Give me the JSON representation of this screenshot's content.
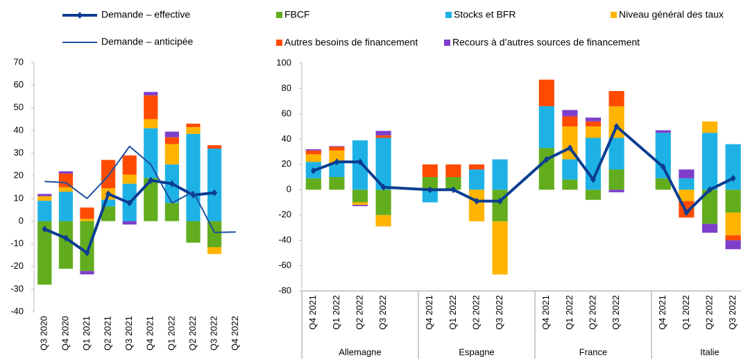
{
  "chart_data": [
    {
      "type": "bar",
      "categories": [
        "Q3 2020",
        "Q4 2020",
        "Q1 2021",
        "Q2 2021",
        "Q3 2021",
        "Q4 2021",
        "Q1 2022",
        "Q2 2022",
        "Q3 2022",
        "Q4 2022"
      ],
      "ylim": [
        -40,
        70
      ],
      "yticks": [
        -40,
        -30,
        -20,
        -10,
        0,
        10,
        20,
        30,
        40,
        50,
        60,
        70
      ],
      "series": [
        {
          "name": "Demande – effective",
          "type": "line",
          "marker": "diamond",
          "color": "#0b3d91",
          "values": [
            -3.5,
            -7.5,
            -14,
            12,
            8,
            18,
            16.5,
            11.5,
            12.5,
            null
          ]
        },
        {
          "name": "Demande – anticipée",
          "type": "line",
          "color": "#1c4f9c",
          "values": [
            17.5,
            17,
            10,
            20,
            33,
            25,
            8,
            13,
            -5,
            -4.8
          ]
        },
        {
          "name": "FBCF",
          "type": "bar",
          "color": "#62ad1e",
          "values": [
            -28,
            -21,
            -22,
            6.5,
            0,
            19,
            8,
            -9.5,
            -11.5,
            null
          ]
        },
        {
          "name": "Stocks et BFR",
          "type": "bar",
          "color": "#1eb1e6",
          "values": [
            9,
            13,
            0,
            3,
            16.5,
            22,
            17,
            38.5,
            32,
            null
          ]
        },
        {
          "name": "Niveau général des taux",
          "type": "bar",
          "color": "#ffb400",
          "values": [
            2,
            2,
            1,
            5,
            4,
            4,
            9,
            3,
            -3,
            null
          ]
        },
        {
          "name": "Autres besoins de financement",
          "type": "bar",
          "color": "#ff4b00",
          "values": [
            0,
            6,
            5,
            12.5,
            8.5,
            10.5,
            3,
            1.5,
            1.5,
            null
          ]
        },
        {
          "name": "Recours à d’autres sources de financement",
          "type": "bar",
          "color": "#7d3ecb",
          "values": [
            1,
            1,
            -1.5,
            0,
            -1.5,
            1.5,
            2.5,
            0,
            0,
            null
          ]
        }
      ]
    },
    {
      "type": "bar",
      "groups": [
        "Allemagne",
        "Espagne",
        "France",
        "Italie"
      ],
      "categories": [
        "Q4 2021",
        "Q1 2022",
        "Q2 2022",
        "Q3 2022",
        "Q4 2021",
        "Q1 2022",
        "Q2 2022",
        "Q3 2022",
        "Q4 2021",
        "Q1 2022",
        "Q2 2022",
        "Q3 2022",
        "Q4 2021",
        "Q1 2022",
        "Q2 2022",
        "Q3 2022"
      ],
      "ylim": [
        -80,
        100
      ],
      "yticks": [
        -80,
        -60,
        -40,
        -20,
        0,
        20,
        40,
        60,
        80,
        100
      ],
      "series": [
        {
          "type": "line",
          "marker": "diamond",
          "color": "#0b3d91",
          "values": [
            15,
            22,
            22,
            2,
            0,
            0,
            -9,
            -9,
            24,
            33,
            8,
            50,
            18,
            -18,
            0,
            9
          ]
        },
        {
          "type": "bar",
          "color": "#62ad1e",
          "values": [
            9,
            10,
            -10,
            -20,
            10,
            10,
            0,
            -25,
            33,
            8,
            -8,
            16,
            9,
            0,
            -27,
            -18
          ]
        },
        {
          "type": "bar",
          "color": "#1eb1e6",
          "values": [
            13,
            11,
            39,
            41,
            -10,
            0,
            16,
            24,
            33,
            16,
            41,
            25,
            36,
            9,
            45,
            36
          ]
        },
        {
          "type": "bar",
          "color": "#ffb400",
          "values": [
            6,
            10,
            -2,
            -9,
            0,
            0,
            -25,
            -42,
            0,
            26,
            9,
            25,
            0,
            -9,
            9,
            -18
          ]
        },
        {
          "type": "bar",
          "color": "#ff4b00",
          "values": [
            3,
            3,
            0,
            2,
            10,
            10,
            4,
            0,
            21,
            8,
            4,
            12,
            0,
            -13,
            0,
            -4
          ]
        },
        {
          "type": "bar",
          "color": "#7d3ecb",
          "values": [
            1,
            0.5,
            -1,
            3.5,
            0,
            0,
            0,
            0,
            0,
            5,
            3,
            -2,
            2,
            7,
            -7,
            -7
          ]
        }
      ]
    }
  ]
}
